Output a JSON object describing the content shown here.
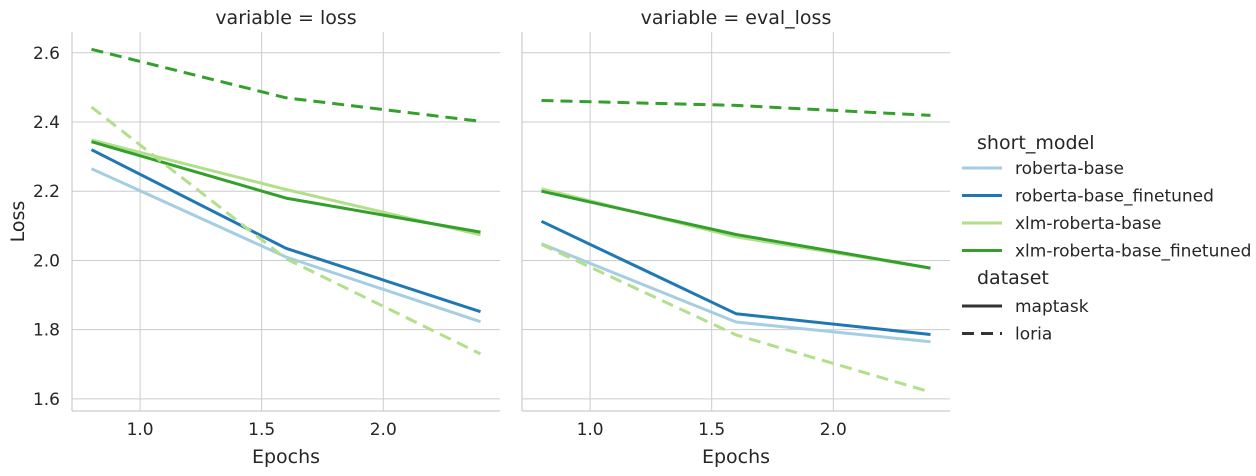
{
  "chart_data": {
    "type": "line",
    "ylabel": "Loss",
    "xlim": [
      0.72,
      2.48
    ],
    "ylim": [
      1.565,
      2.66
    ],
    "x_ticks": [
      1.0,
      1.5,
      2.0
    ],
    "x_tick_labels": [
      "1.0",
      "1.5",
      "2.0"
    ],
    "y_ticks": [
      1.6,
      1.8,
      2.0,
      2.2,
      2.4,
      2.6
    ],
    "y_tick_labels": [
      "1.6",
      "1.8",
      "2.0",
      "2.2",
      "2.4",
      "2.6"
    ],
    "grid": true,
    "x": [
      0.8,
      1.6,
      2.4
    ],
    "panels": [
      {
        "title": "variable = loss",
        "xlabel": "Epochs",
        "series": [
          {
            "model": "roberta-base",
            "dataset": "maptask",
            "values": [
              2.265,
              2.01,
              1.823
            ]
          },
          {
            "model": "roberta-base_finetuned",
            "dataset": "maptask",
            "values": [
              2.32,
              2.035,
              1.852
            ]
          },
          {
            "model": "xlm-roberta-base",
            "dataset": "maptask",
            "values": [
              2.348,
              2.205,
              2.074
            ]
          },
          {
            "model": "xlm-roberta-base_finetuned",
            "dataset": "maptask",
            "values": [
              2.343,
              2.18,
              2.082
            ]
          },
          {
            "model": "xlm-roberta-base",
            "dataset": "loria",
            "values": [
              2.443,
              2.005,
              1.73
            ]
          },
          {
            "model": "xlm-roberta-base_finetuned",
            "dataset": "loria",
            "values": [
              2.61,
              2.47,
              2.402
            ]
          }
        ]
      },
      {
        "title": "variable = eval_loss",
        "xlabel": "Epochs",
        "series": [
          {
            "model": "roberta-base",
            "dataset": "maptask",
            "values": [
              2.048,
              1.822,
              1.765
            ]
          },
          {
            "model": "roberta-base_finetuned",
            "dataset": "maptask",
            "values": [
              2.113,
              1.846,
              1.786
            ]
          },
          {
            "model": "xlm-roberta-base",
            "dataset": "maptask",
            "values": [
              2.207,
              2.068,
              1.978
            ]
          },
          {
            "model": "xlm-roberta-base_finetuned",
            "dataset": "maptask",
            "values": [
              2.2,
              2.075,
              1.978
            ]
          },
          {
            "model": "xlm-roberta-base",
            "dataset": "loria",
            "values": [
              2.046,
              1.785,
              1.62
            ]
          },
          {
            "model": "xlm-roberta-base_finetuned",
            "dataset": "loria",
            "values": [
              2.462,
              2.448,
              2.419
            ]
          }
        ]
      }
    ],
    "legend": {
      "placement": "right",
      "hue_title": "short_model",
      "hue_entries": [
        {
          "label": "roberta-base",
          "color": "#a6cee3"
        },
        {
          "label": "roberta-base_finetuned",
          "color": "#1f78b4"
        },
        {
          "label": "xlm-roberta-base",
          "color": "#b2df8a"
        },
        {
          "label": "xlm-roberta-base_finetuned",
          "color": "#33a02c"
        }
      ],
      "style_title": "dataset",
      "style_entries": [
        {
          "label": "maptask",
          "dash": "solid",
          "color": "#333333"
        },
        {
          "label": "loria",
          "dash": "dashed",
          "color": "#333333"
        }
      ]
    }
  }
}
